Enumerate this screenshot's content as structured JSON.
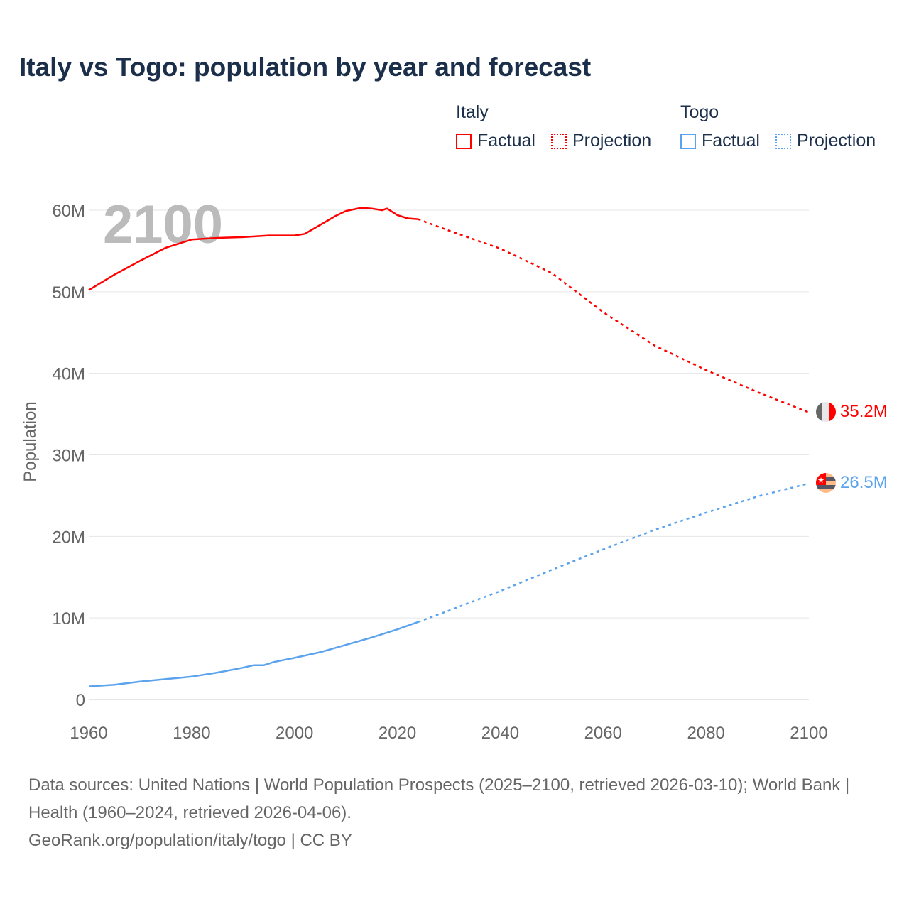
{
  "title": "Italy vs Togo: population by year and forecast",
  "legend": {
    "groups": [
      {
        "name": "Italy",
        "color": "#ff0000",
        "items": [
          "Factual",
          "Projection"
        ]
      },
      {
        "name": "Togo",
        "color": "#5ba3ec",
        "items": [
          "Factual",
          "Projection"
        ]
      }
    ]
  },
  "year_watermark": "2100",
  "source_lines": [
    "Data sources: United Nations | World Population Prospects (2025–2100, retrieved 2026-03-10); World Bank | Health (1960–2024, retrieved 2026-04-06).",
    "GeoRank.org/population/italy/togo | CC BY"
  ],
  "chart_data": {
    "type": "line",
    "title": "Italy vs Togo: population by year and forecast",
    "xlabel": "",
    "ylabel": "Population",
    "xlim": [
      1960,
      2100
    ],
    "ylim": [
      0,
      60000000
    ],
    "xticks": [
      1960,
      1980,
      2000,
      2020,
      2040,
      2060,
      2080,
      2100
    ],
    "xtick_labels": [
      "1960",
      "1980",
      "2000",
      "2020",
      "2040",
      "2060",
      "2080",
      "2100"
    ],
    "yticks": [
      0,
      10000000,
      20000000,
      30000000,
      40000000,
      50000000,
      60000000
    ],
    "ytick_labels": [
      "0",
      "10M",
      "20M",
      "30M",
      "40M",
      "50M",
      "60M"
    ],
    "grid": true,
    "legend_position": "top-right",
    "series": [
      {
        "name": "Italy",
        "color": "#ff0000",
        "end_label": "35.2M",
        "factual": {
          "x": [
            1960,
            1965,
            1970,
            1975,
            1980,
            1985,
            1990,
            1995,
            2000,
            2002,
            2005,
            2008,
            2010,
            2013,
            2015,
            2017,
            2018,
            2020,
            2022,
            2024
          ],
          "y": [
            50.2,
            52.1,
            53.8,
            55.4,
            56.4,
            56.6,
            56.7,
            56.9,
            56.9,
            57.1,
            58.2,
            59.3,
            59.9,
            60.3,
            60.2,
            60.0,
            60.2,
            59.4,
            59.0,
            58.9
          ]
        },
        "projection": {
          "x": [
            2024,
            2030,
            2040,
            2050,
            2060,
            2070,
            2080,
            2090,
            2100
          ],
          "y": [
            58.9,
            57.5,
            55.3,
            52.3,
            47.5,
            43.4,
            40.4,
            37.7,
            35.2
          ]
        }
      },
      {
        "name": "Togo",
        "color": "#5ba3ec",
        "end_label": "26.5M",
        "factual": {
          "x": [
            1960,
            1965,
            1970,
            1975,
            1980,
            1985,
            1990,
            1992,
            1994,
            1996,
            2000,
            2005,
            2010,
            2015,
            2020,
            2024
          ],
          "y": [
            1.6,
            1.8,
            2.2,
            2.5,
            2.8,
            3.3,
            3.9,
            4.2,
            4.2,
            4.6,
            5.1,
            5.8,
            6.7,
            7.6,
            8.6,
            9.5
          ]
        },
        "projection": {
          "x": [
            2024,
            2030,
            2040,
            2050,
            2060,
            2070,
            2080,
            2090,
            2100
          ],
          "y": [
            9.5,
            10.9,
            13.3,
            15.9,
            18.4,
            20.8,
            22.9,
            24.9,
            26.5
          ]
        }
      }
    ],
    "y_unit": "millions"
  }
}
